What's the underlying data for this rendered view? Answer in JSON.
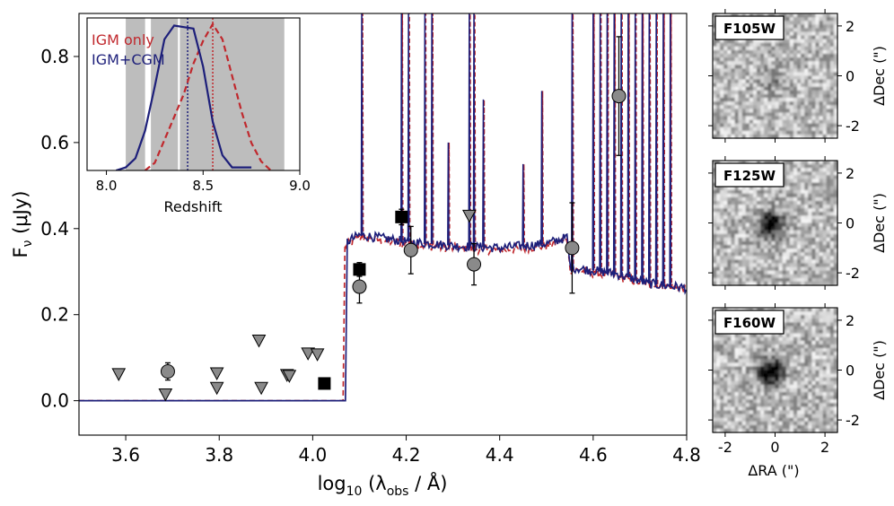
{
  "chart_data": [
    {
      "type": "line",
      "name": "main-sed",
      "xlabel": "log10 (λobs / Å)",
      "xlabel_main": "log",
      "xlabel_sub": "10",
      "xlabel_mid": " (λ",
      "xlabel_sub2": "obs",
      "xlabel_end": " / Å)",
      "ylabel": "Fν (μJy)",
      "ylabel_main": "F",
      "ylabel_sub": "ν",
      "ylabel_end": " (μJy)",
      "xlim": [
        3.5,
        4.8
      ],
      "ylim": [
        -0.08,
        0.9
      ],
      "xticks": [
        3.6,
        3.8,
        4.0,
        4.2,
        4.4,
        4.6,
        4.8
      ],
      "xtick_labels": [
        "3.6",
        "3.8",
        "4.0",
        "4.2",
        "4.4",
        "4.6",
        "4.8"
      ],
      "yticks": [
        0.0,
        0.2,
        0.4,
        0.6,
        0.8
      ],
      "ytick_labels": [
        "0.0",
        "0.2",
        "0.4",
        "0.6",
        "0.8"
      ],
      "colors": {
        "igm": "#c0282d",
        "cgm": "#1d1f7a",
        "marker_grey": "#8a8a8a",
        "marker_black": "#000000"
      },
      "series": [
        {
          "name": "IGM only (model SED)",
          "style": "dashed",
          "break_x": 4.065,
          "continuum": [
            [
              4.07,
              0.36
            ],
            [
              4.1,
              0.38
            ],
            [
              4.2,
              0.365
            ],
            [
              4.3,
              0.355
            ],
            [
              4.4,
              0.35
            ],
            [
              4.5,
              0.36
            ],
            [
              4.545,
              0.375
            ],
            [
              4.55,
              0.305
            ],
            [
              4.65,
              0.29
            ],
            [
              4.72,
              0.27
            ],
            [
              4.8,
              0.26
            ]
          ]
        },
        {
          "name": "IGM+CGM (model SED)",
          "style": "solid",
          "break_x": 4.07,
          "continuum": [
            [
              4.075,
              0.37
            ],
            [
              4.1,
              0.385
            ],
            [
              4.2,
              0.37
            ],
            [
              4.3,
              0.36
            ],
            [
              4.4,
              0.355
            ],
            [
              4.5,
              0.365
            ],
            [
              4.545,
              0.38
            ],
            [
              4.55,
              0.31
            ],
            [
              4.65,
              0.295
            ],
            [
              4.72,
              0.272
            ],
            [
              4.8,
              0.262
            ]
          ]
        }
      ],
      "emission_lines_x": [
        4.105,
        4.19,
        4.205,
        4.24,
        4.255,
        4.29,
        4.335,
        4.345,
        4.365,
        4.45,
        4.49,
        4.555,
        4.6,
        4.615,
        4.63,
        4.645,
        4.66,
        4.675,
        4.69,
        4.705,
        4.72,
        4.735,
        4.75,
        4.765
      ],
      "photometry_circles": [
        {
          "x": 3.69,
          "y": 0.068,
          "err": 0.02
        },
        {
          "x": 4.1,
          "y": 0.265,
          "err": 0.038
        },
        {
          "x": 4.21,
          "y": 0.35,
          "err": 0.055
        },
        {
          "x": 4.345,
          "y": 0.317,
          "err": 0.048
        },
        {
          "x": 4.555,
          "y": 0.355,
          "err": 0.105
        },
        {
          "x": 4.655,
          "y": 0.708,
          "err": 0.138
        }
      ],
      "photometry_squares": [
        {
          "x": 4.1,
          "y": 0.305,
          "err": 0.016
        },
        {
          "x": 4.19,
          "y": 0.427,
          "err": 0.018
        },
        {
          "x": 4.025,
          "y": 0.04,
          "err": 0
        }
      ],
      "upper_limits": [
        {
          "x": 3.585,
          "y": 0.062
        },
        {
          "x": 3.685,
          "y": 0.015
        },
        {
          "x": 3.795,
          "y": 0.064
        },
        {
          "x": 3.795,
          "y": 0.03
        },
        {
          "x": 3.885,
          "y": 0.14
        },
        {
          "x": 3.89,
          "y": 0.03
        },
        {
          "x": 3.945,
          "y": 0.06
        },
        {
          "x": 3.95,
          "y": 0.058
        },
        {
          "x": 3.99,
          "y": 0.11
        },
        {
          "x": 4.01,
          "y": 0.108
        },
        {
          "x": 4.335,
          "y": 0.43
        }
      ]
    },
    {
      "type": "line",
      "name": "redshift-inset",
      "xlabel": "Redshift",
      "xlim": [
        7.9,
        9.0
      ],
      "ylim": [
        0,
        1.0
      ],
      "xticks": [
        8.0,
        8.5,
        9.0
      ],
      "xtick_labels": [
        "8.0",
        "8.5",
        "9.0"
      ],
      "shaded_bands": [
        [
          8.1,
          8.2
        ],
        [
          8.23,
          8.37
        ],
        [
          8.38,
          8.92
        ]
      ],
      "legend": [
        {
          "label": "IGM only",
          "color": "#c0282d"
        },
        {
          "label": "IGM+CGM",
          "color": "#1d1f7a"
        }
      ],
      "series": [
        {
          "name": "IGM only",
          "style": "dashed",
          "x": [
            8.2,
            8.25,
            8.3,
            8.35,
            8.4,
            8.45,
            8.5,
            8.55,
            8.6,
            8.65,
            8.7,
            8.75,
            8.8,
            8.85
          ],
          "y": [
            0.0,
            0.05,
            0.2,
            0.35,
            0.5,
            0.7,
            0.85,
            0.96,
            0.86,
            0.62,
            0.38,
            0.18,
            0.06,
            0.0
          ]
        },
        {
          "name": "IGM+CGM",
          "style": "solid",
          "x": [
            8.05,
            8.1,
            8.15,
            8.2,
            8.25,
            8.3,
            8.35,
            8.4,
            8.45,
            8.5,
            8.55,
            8.6,
            8.65,
            8.7,
            8.75
          ],
          "y": [
            0.0,
            0.02,
            0.08,
            0.26,
            0.55,
            0.86,
            0.95,
            0.94,
            0.93,
            0.68,
            0.32,
            0.1,
            0.02,
            0.02,
            0.02
          ]
        }
      ],
      "vlines": [
        {
          "x": 8.42,
          "color": "#1d1f7a",
          "style": "dotted"
        },
        {
          "x": 8.55,
          "color": "#c0282d",
          "style": "dotted"
        }
      ]
    },
    {
      "type": "heatmap",
      "name": "image-cutouts",
      "xlabel": "ΔRA (\")",
      "ylabel": "ΔDec (\")",
      "xlim": [
        -2.5,
        2.5
      ],
      "ylim": [
        -2.5,
        2.5
      ],
      "xticks": [
        -2,
        0,
        2
      ],
      "xtick_labels": [
        "-2",
        "0",
        "2"
      ],
      "yticks": [
        2,
        0,
        -2
      ],
      "ytick_labels": [
        "2",
        "0",
        "-2"
      ],
      "panels": [
        {
          "filter": "F105W",
          "source_strength": 0.25
        },
        {
          "filter": "F125W",
          "source_strength": 0.8
        },
        {
          "filter": "F160W",
          "source_strength": 0.9
        }
      ]
    }
  ]
}
